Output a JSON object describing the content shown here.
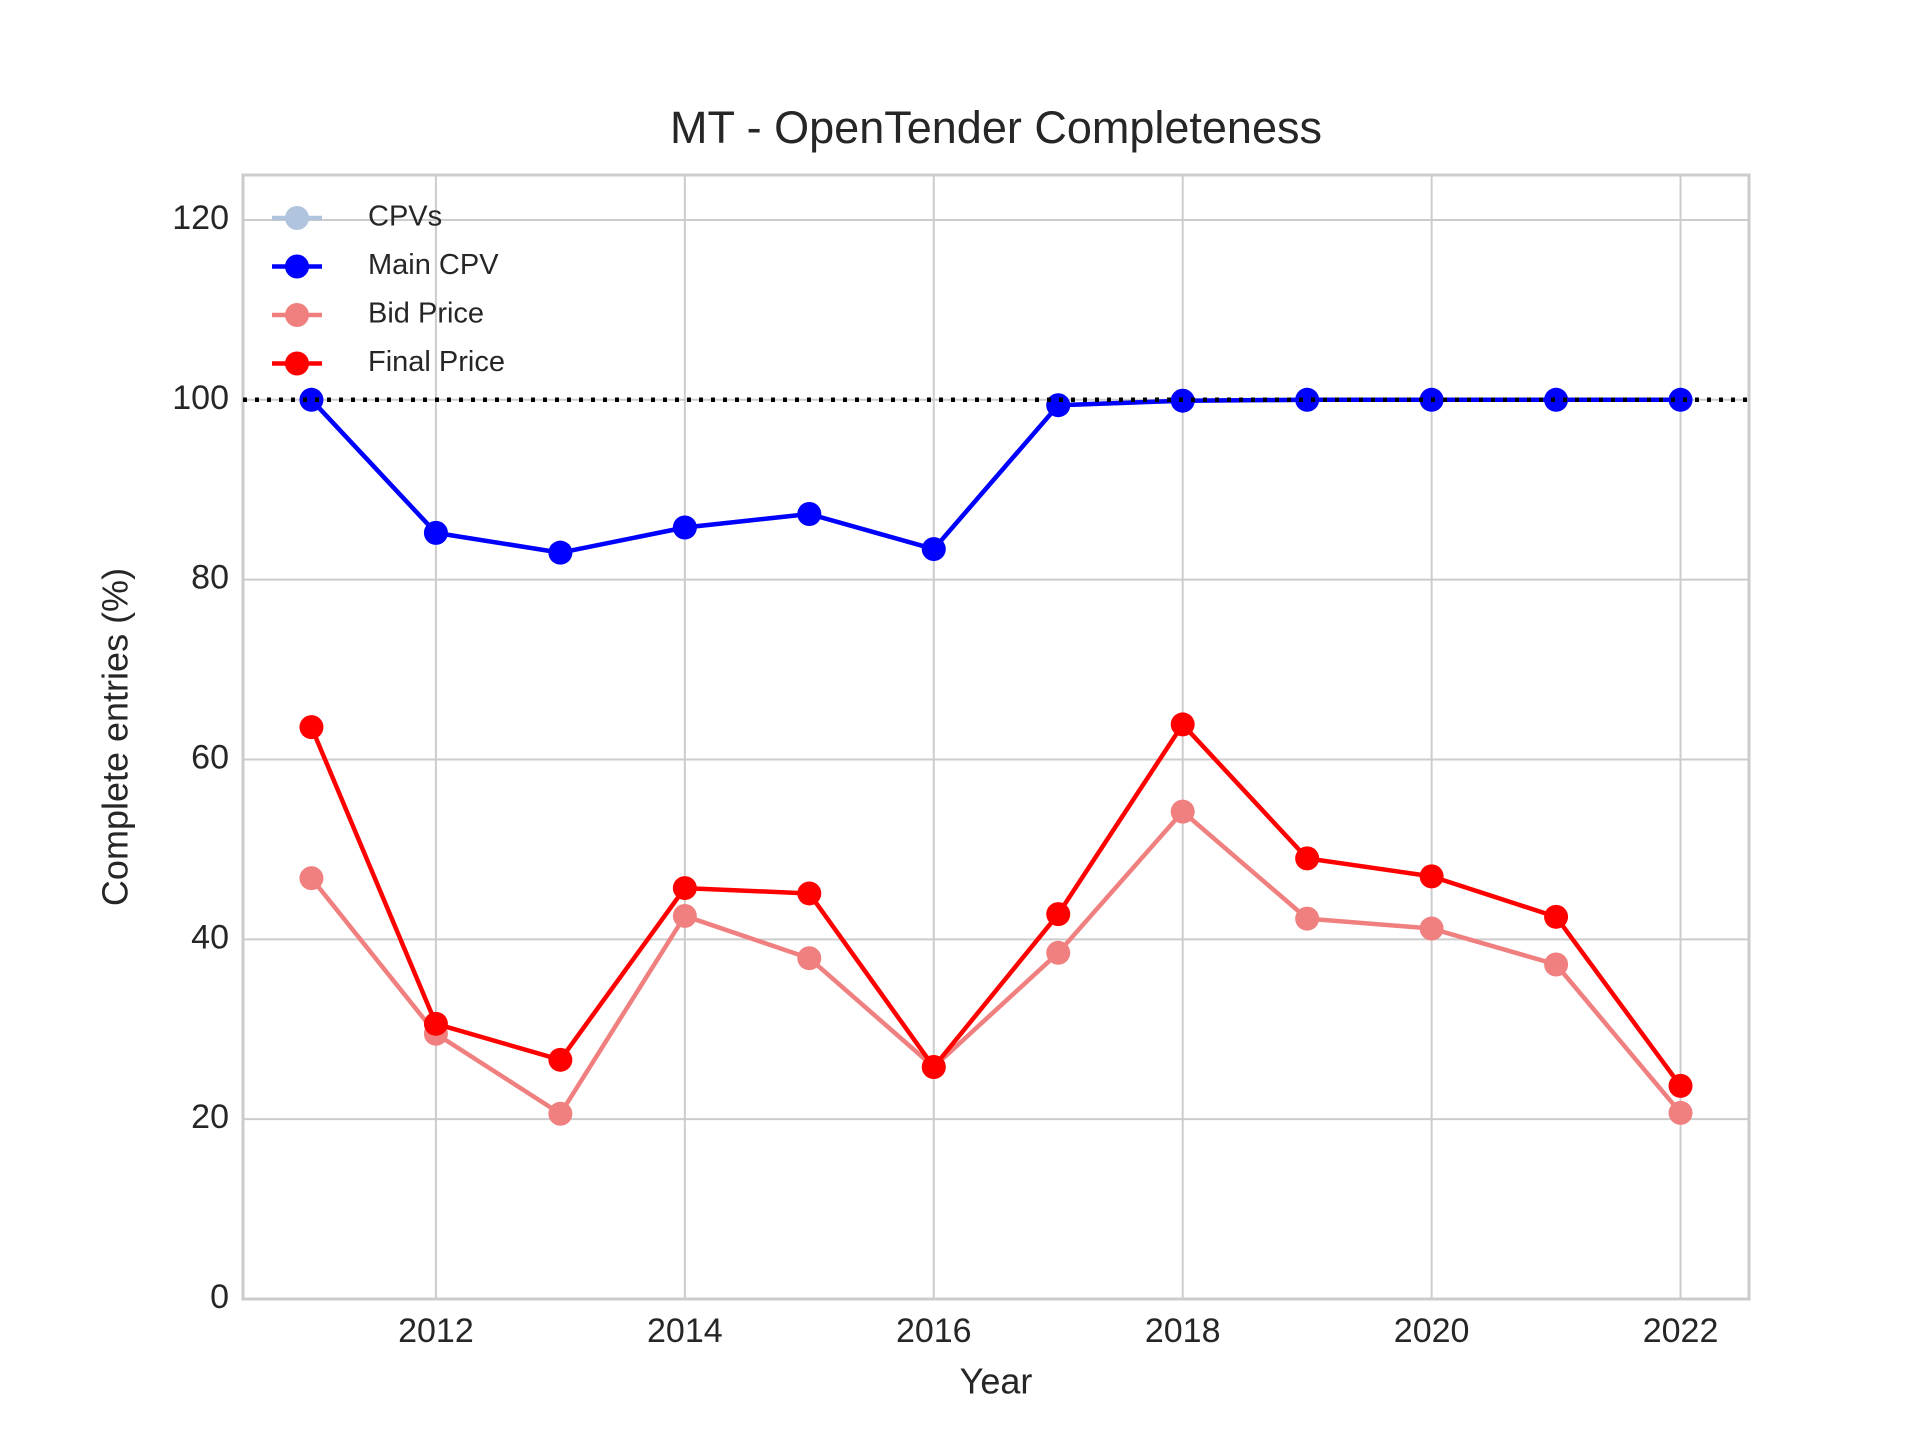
{
  "chart_data": {
    "type": "line",
    "title": "MT - OpenTender Completeness",
    "xlabel": "Year",
    "ylabel": "Complete entries (%)",
    "x": [
      2011,
      2012,
      2013,
      2014,
      2015,
      2016,
      2017,
      2018,
      2019,
      2020,
      2021,
      2022
    ],
    "series": [
      {
        "name": "CPVs",
        "color": "#b0c4de",
        "values": [
          100,
          85.2,
          83.0,
          85.8,
          87.3,
          83.4,
          99.4,
          99.9,
          100,
          100,
          100,
          100
        ]
      },
      {
        "name": "Main CPV",
        "color": "#0000ff",
        "values": [
          100,
          85.2,
          83.0,
          85.8,
          87.3,
          83.4,
          99.4,
          99.9,
          100,
          100,
          100,
          100
        ]
      },
      {
        "name": "Bid Price",
        "color": "#f08080",
        "values": [
          46.8,
          29.5,
          20.6,
          42.6,
          37.9,
          25.8,
          38.5,
          54.2,
          42.3,
          41.2,
          37.2,
          20.7
        ]
      },
      {
        "name": "Final Price",
        "color": "#ff0000",
        "values": [
          63.6,
          30.6,
          26.6,
          45.7,
          45.1,
          25.8,
          42.8,
          63.9,
          49.0,
          47.0,
          42.5,
          23.7
        ]
      }
    ],
    "reference_line": {
      "value": 100,
      "color": "#000000"
    },
    "xlim": [
      2010.45,
      2022.55
    ],
    "xticks": [
      2012,
      2014,
      2016,
      2018,
      2020,
      2022
    ],
    "ylim": [
      0,
      125
    ],
    "yticks": [
      0,
      20,
      40,
      60,
      80,
      100,
      120
    ],
    "grid": true,
    "legend": "upper left"
  }
}
